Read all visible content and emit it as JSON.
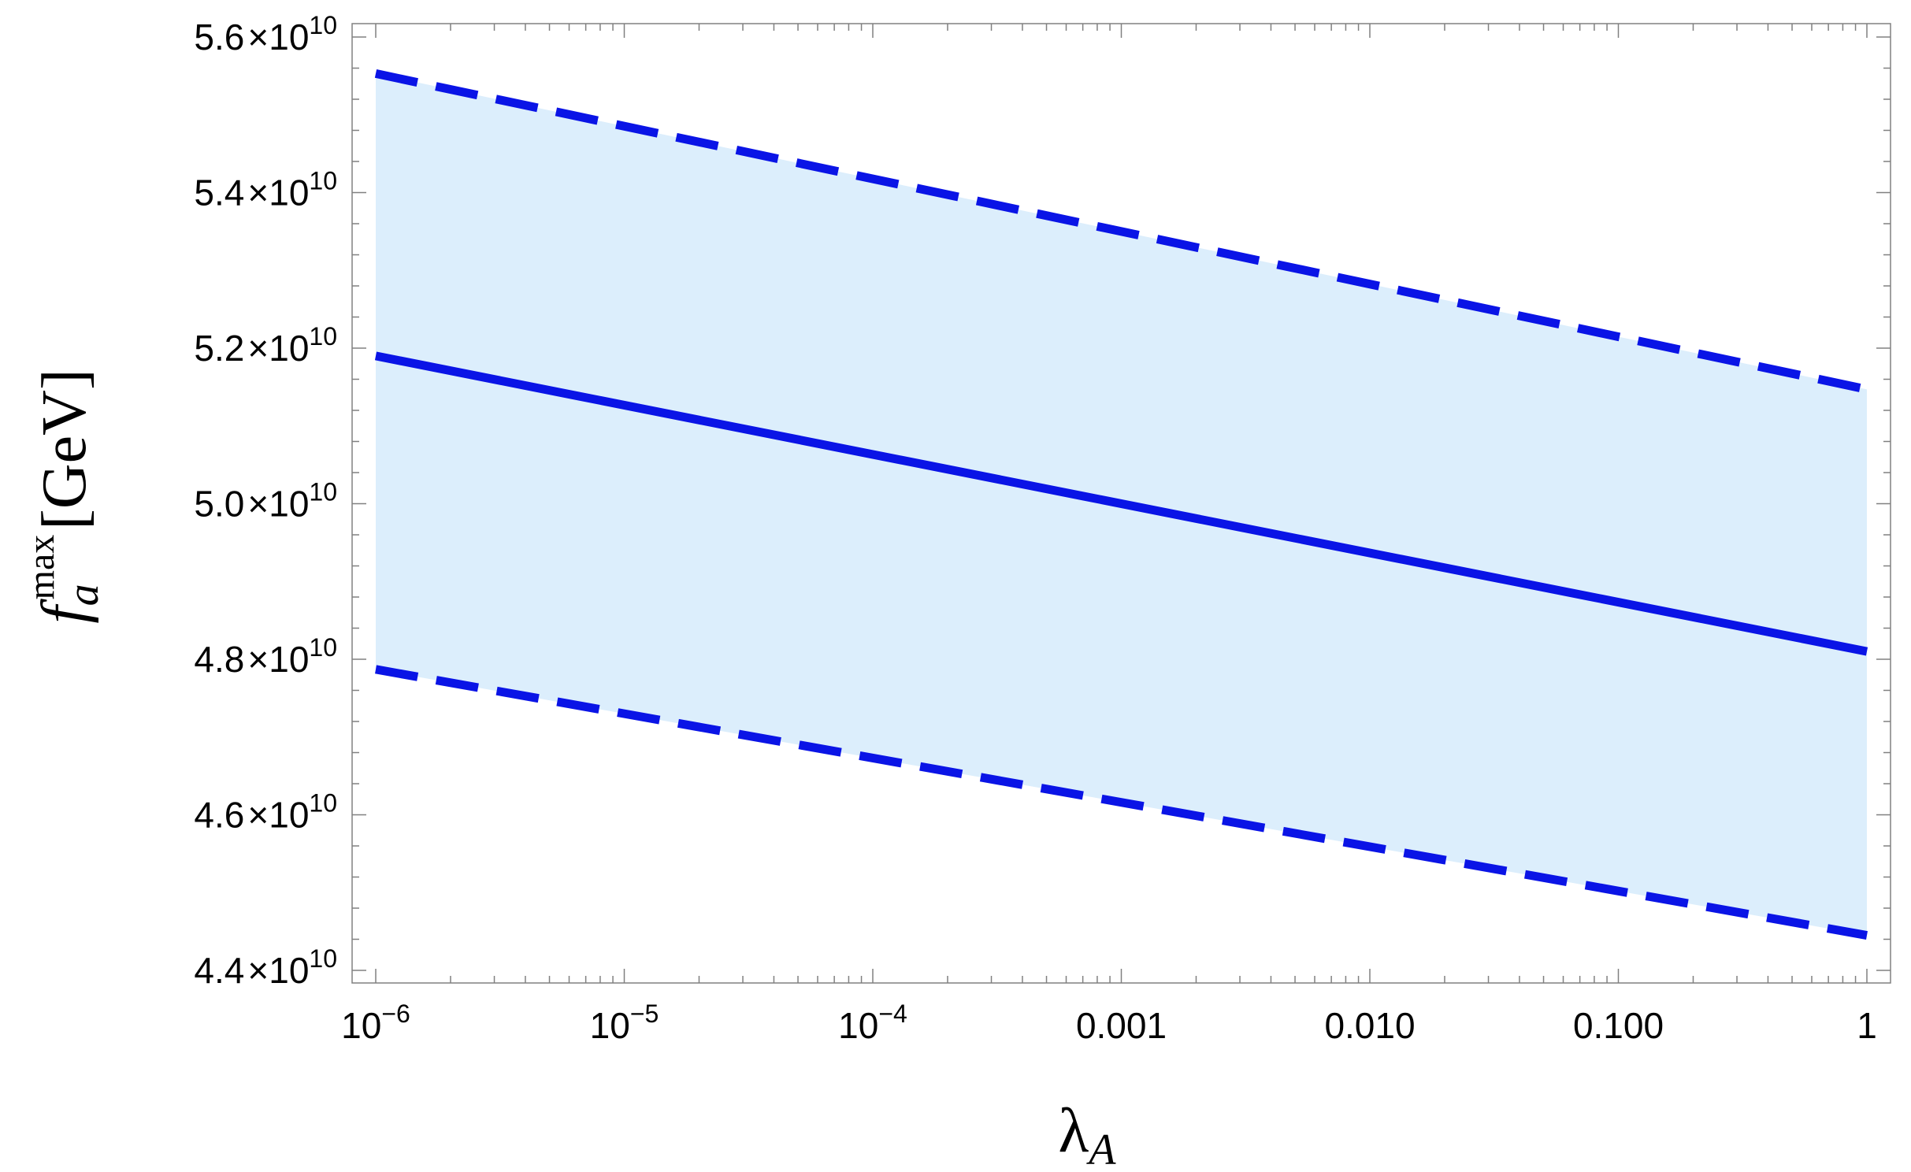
{
  "chart_data": {
    "type": "line",
    "title": "",
    "x_scale": "log",
    "xlim": [
      1e-06,
      1
    ],
    "ylim": [
      44000000000.0,
      56000000000.0
    ],
    "grid": false,
    "xlabel": {
      "base": "λ",
      "subscript": "A"
    },
    "ylabel": {
      "base": "f",
      "subscript": "a",
      "superscript": "max",
      "unit": "[GeV]"
    },
    "x_ticks": [
      {
        "value": 1e-06,
        "base": "10",
        "exp": "−6"
      },
      {
        "value": 1e-05,
        "base": "10",
        "exp": "−5"
      },
      {
        "value": 0.0001,
        "base": "10",
        "exp": "−4"
      },
      {
        "value": 0.001,
        "base": "0.001",
        "exp": ""
      },
      {
        "value": 0.01,
        "base": "0.010",
        "exp": ""
      },
      {
        "value": 0.1,
        "base": "0.100",
        "exp": ""
      },
      {
        "value": 1,
        "base": "1",
        "exp": ""
      }
    ],
    "y_ticks": [
      {
        "value": 44000000000.0,
        "mant": "4.4",
        "times": "×",
        "base": "10",
        "exp": "10"
      },
      {
        "value": 46000000000.0,
        "mant": "4.6",
        "times": "×",
        "base": "10",
        "exp": "10"
      },
      {
        "value": 48000000000.0,
        "mant": "4.8",
        "times": "×",
        "base": "10",
        "exp": "10"
      },
      {
        "value": 50000000000.0,
        "mant": "5.0",
        "times": "×",
        "base": "10",
        "exp": "10"
      },
      {
        "value": 52000000000.0,
        "mant": "5.2",
        "times": "×",
        "base": "10",
        "exp": "10"
      },
      {
        "value": 54000000000.0,
        "mant": "5.4",
        "times": "×",
        "base": "10",
        "exp": "10"
      },
      {
        "value": 56000000000.0,
        "mant": "5.6",
        "times": "×",
        "base": "10",
        "exp": "10"
      }
    ],
    "series": [
      {
        "style": "dashed",
        "x": [
          1e-06,
          1
        ],
        "values": [
          55530000000.0,
          51470000000.0
        ]
      },
      {
        "style": "solid",
        "x": [
          1e-06,
          1
        ],
        "values": [
          51900000000.0,
          48100000000.0
        ]
      },
      {
        "style": "dashed",
        "x": [
          1e-06,
          1
        ],
        "values": [
          47870000000.0,
          44450000000.0
        ]
      }
    ],
    "band": {
      "upper_series": 0,
      "lower_series": 2
    },
    "colors": {
      "line": "#0a14e6",
      "band": "#dceefc",
      "frame": "#808080"
    }
  }
}
